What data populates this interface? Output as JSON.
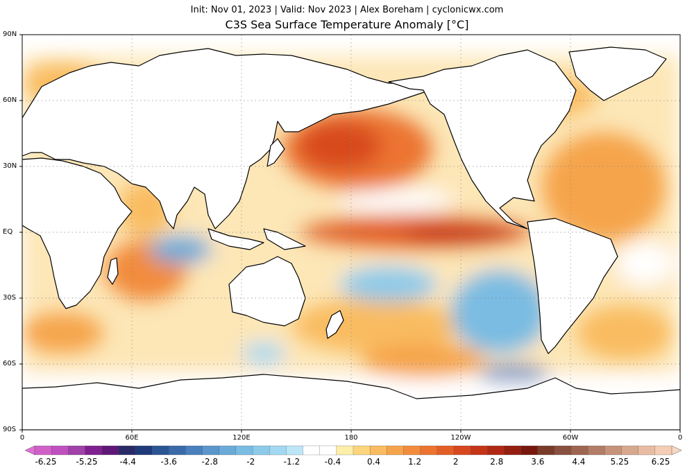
{
  "header": {
    "subtitle": "Init: Nov 01, 2023 | Valid: Nov 2023 | Alex Boreham | cyclonicwx.com",
    "title": "C3S Sea Surface Temperature Anomaly [°C]"
  },
  "axes": {
    "lat_labels": [
      "90N",
      "60N",
      "30N",
      "EQ",
      "30S",
      "60S",
      "90S"
    ],
    "lon_labels": [
      "0",
      "60E",
      "120E",
      "180",
      "120W",
      "60W",
      "0"
    ]
  },
  "colorbar": {
    "labels": [
      "-6.25",
      "-5.25",
      "-4.4",
      "-3.6",
      "-2.8",
      "-2",
      "-1.2",
      "-0.4",
      "0.4",
      "1.2",
      "2",
      "2.8",
      "3.6",
      "4.4",
      "5.25",
      "6.25"
    ],
    "colors": [
      "#d060c8",
      "#c050c0",
      "#a040a8",
      "#802090",
      "#601878",
      "#2a2a68",
      "#1e3a7a",
      "#2a5494",
      "#3a6aaa",
      "#4a80be",
      "#5a96cc",
      "#6aaad8",
      "#7abce2",
      "#8ccaea",
      "#a2d8f2",
      "#bce6f8",
      "#ffffff",
      "#ffffff",
      "#fdeea8",
      "#fbd47c",
      "#f9bc60",
      "#f6a44c",
      "#f28c3c",
      "#ec7430",
      "#e35e26",
      "#d8481e",
      "#c63418",
      "#b02814",
      "#941e10",
      "#78180c",
      "#7a3c2a",
      "#8a5040",
      "#9e6650",
      "#b27c66",
      "#c6927a",
      "#d8a88e",
      "#e8bca2",
      "#f4cdb4"
    ]
  }
}
